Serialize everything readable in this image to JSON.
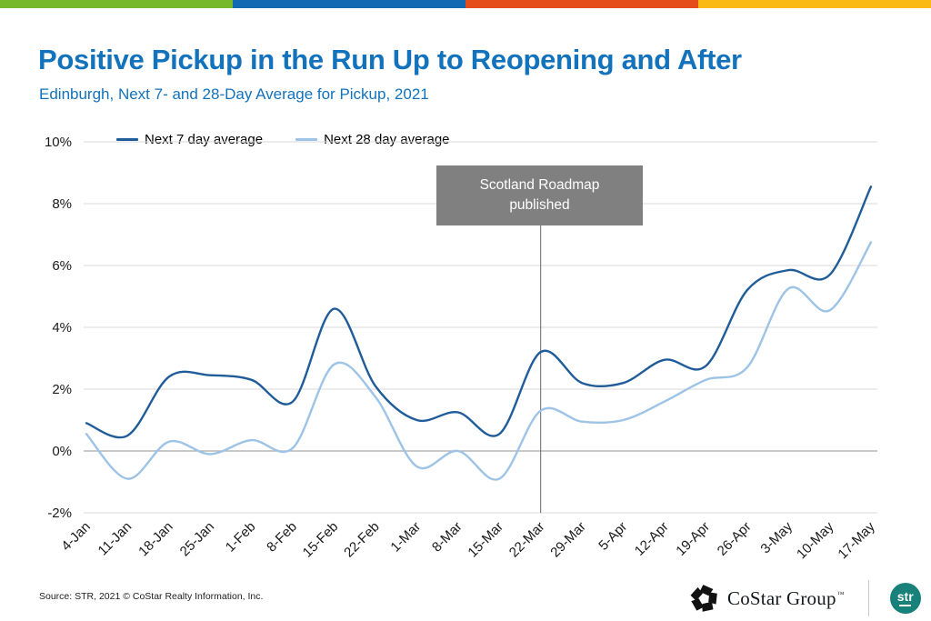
{
  "brand_bar": {
    "colors": [
      "#76B82A",
      "#1168B3",
      "#E54D1B",
      "#FBBA12"
    ]
  },
  "header": {
    "title_color": "#1273BC",
    "subtitle_color": "#1273BC"
  },
  "chart_data": {
    "type": "line",
    "title": "Positive Pickup in the Run Up to Reopening and After",
    "subtitle": "Edinburgh, Next 7- and 28-Day Average for Pickup, 2021",
    "categories": [
      "4-Jan",
      "11-Jan",
      "18-Jan",
      "25-Jan",
      "1-Feb",
      "8-Feb",
      "15-Feb",
      "22-Feb",
      "1-Mar",
      "8-Mar",
      "15-Mar",
      "22-Mar",
      "29-Mar",
      "5-Apr",
      "12-Apr",
      "19-Apr",
      "26-Apr",
      "3-May",
      "10-May",
      "17-May"
    ],
    "series": [
      {
        "name": "Next 7 day average",
        "color": "#1F5C99",
        "values": [
          0.9,
          0.5,
          2.4,
          2.45,
          2.3,
          1.6,
          4.6,
          2.1,
          1.0,
          1.25,
          0.55,
          3.2,
          2.2,
          2.2,
          2.95,
          2.75,
          5.2,
          5.85,
          5.7,
          8.55
        ]
      },
      {
        "name": "Next 28 day average",
        "color": "#9DC3E6",
        "values": [
          0.55,
          -0.9,
          0.3,
          -0.1,
          0.35,
          0.1,
          2.8,
          1.75,
          -0.5,
          0.0,
          -0.9,
          1.3,
          0.95,
          1.0,
          1.6,
          2.3,
          2.7,
          5.25,
          4.55,
          6.75
        ]
      }
    ],
    "ylim": [
      -2,
      10
    ],
    "yticks": [
      {
        "value": 10,
        "label": "10%"
      },
      {
        "value": 8,
        "label": "8%"
      },
      {
        "value": 6,
        "label": "6%"
      },
      {
        "value": 4,
        "label": "4%"
      },
      {
        "value": 2,
        "label": "2%"
      },
      {
        "value": 0,
        "label": "0%"
      },
      {
        "value": -2,
        "label": "-2%"
      }
    ],
    "grid": "horizontal",
    "grid_color": "#D9D9D9",
    "zero_line_color": "#A6A6A6",
    "x_label_rotation": -45,
    "legend_position": "top",
    "annotation": {
      "line1": "Scotland Roadmap",
      "line2": "published",
      "x_category": "22-Mar",
      "box_color": "#808080",
      "text_color": "#FFFFFF",
      "line_color": "#7F7F7F"
    }
  },
  "footer": {
    "source": "Source: STR, 2021 © CoStar Realty Information, Inc.",
    "costar_logo_text": "CoStar Group",
    "costar_tm": "™",
    "str_logo_text": "str",
    "str_logo_color": "#17817A"
  }
}
